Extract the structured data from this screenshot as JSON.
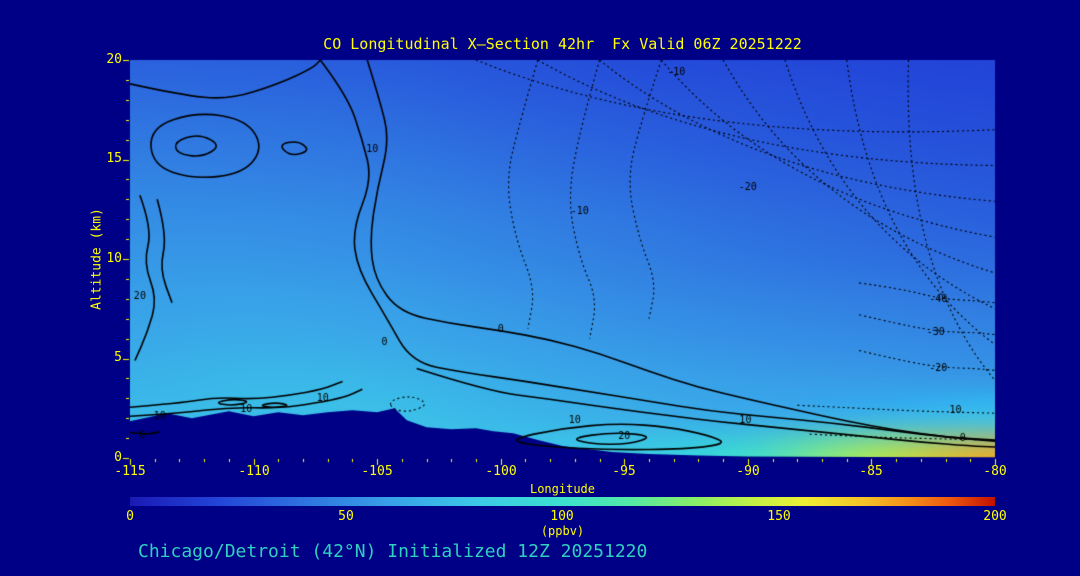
{
  "colors": {
    "background": "#000086",
    "axis": "#ffff00",
    "title": "#ffff00",
    "annotation": "#2fd0c0",
    "contour": "#000000"
  },
  "chart_data": {
    "type": "heatmap",
    "subtype": "filled-contour-longitudinal-cross-section",
    "title": "CO Longitudinal X—Section 42hr  Fx Valid 06Z 20251222",
    "xlabel": "Longitude",
    "ylabel": "Altitude (km)",
    "xlim": [
      -115,
      -80
    ],
    "ylim": [
      0,
      20
    ],
    "x_ticks": [
      -115,
      -110,
      -105,
      -100,
      -95,
      -90,
      -85,
      -80
    ],
    "y_ticks": [
      0,
      5,
      10,
      15,
      20
    ],
    "grid": false,
    "annotation": "Chicago/Detroit (42°N) Initialized 12Z 20251220",
    "meta": {
      "species": "CO",
      "forecast_hour": "42hr",
      "valid": "06Z 20251222",
      "initialized": "12Z 20251220",
      "location": "Chicago/Detroit (42°N)"
    },
    "colorbar": {
      "label": "(ppbv)",
      "min": 0,
      "max": 200,
      "ticks": [
        0,
        50,
        100,
        150,
        200
      ],
      "stops": [
        {
          "pos": 0.0,
          "color": "#1a1ab4"
        },
        {
          "pos": 0.1,
          "color": "#2244d8"
        },
        {
          "pos": 0.2,
          "color": "#2e72e0"
        },
        {
          "pos": 0.3,
          "color": "#38a0e8"
        },
        {
          "pos": 0.4,
          "color": "#3cc8e8"
        },
        {
          "pos": 0.5,
          "color": "#3ce0d0"
        },
        {
          "pos": 0.575,
          "color": "#52e8a8"
        },
        {
          "pos": 0.65,
          "color": "#86ee6a"
        },
        {
          "pos": 0.72,
          "color": "#c2f046"
        },
        {
          "pos": 0.78,
          "color": "#eeee34"
        },
        {
          "pos": 0.85,
          "color": "#f4c028"
        },
        {
          "pos": 0.9,
          "color": "#f49018"
        },
        {
          "pos": 0.95,
          "color": "#ee5510"
        },
        {
          "pos": 1.0,
          "color": "#c01000"
        }
      ]
    },
    "field": {
      "units": "ppbv",
      "lons": [
        -115,
        -110,
        -105,
        -100,
        -95,
        -90,
        -85,
        -80
      ],
      "alts": [
        20,
        18,
        16,
        14,
        12,
        10,
        8,
        6,
        4,
        2,
        0
      ],
      "values": [
        [
          33,
          32,
          30,
          27,
          24,
          22,
          21,
          20
        ],
        [
          38,
          37,
          35,
          31,
          28,
          26,
          24,
          22
        ],
        [
          43,
          42,
          40,
          36,
          32,
          29,
          27,
          25
        ],
        [
          48,
          47,
          45,
          41,
          37,
          33,
          31,
          28
        ],
        [
          52,
          52,
          50,
          46,
          42,
          38,
          35,
          32
        ],
        [
          56,
          56,
          54,
          50,
          46,
          42,
          39,
          37
        ],
        [
          60,
          61,
          59,
          55,
          51,
          48,
          45,
          43
        ],
        [
          64,
          66,
          64,
          60,
          56,
          53,
          51,
          49
        ],
        [
          69,
          72,
          71,
          66,
          62,
          59,
          58,
          56
        ],
        [
          73,
          75,
          77,
          72,
          68,
          66,
          70,
          78
        ],
        [
          73,
          75,
          79,
          79,
          84,
          100,
          140,
          175
        ]
      ]
    },
    "terrain": {
      "lons": [
        -115,
        -113.5,
        -112.5,
        -111,
        -110,
        -109,
        -108,
        -107,
        -106,
        -105,
        -104.3,
        -103.8,
        -103,
        -102,
        -101,
        -100.3,
        -99.5,
        -98.5,
        -97.5,
        -96.5,
        -95.5,
        -94,
        -92,
        -90,
        -85,
        -80
      ],
      "alts": [
        1.85,
        2.25,
        2.0,
        2.35,
        2.1,
        2.3,
        2.15,
        2.3,
        2.4,
        2.3,
        2.5,
        1.9,
        1.55,
        1.45,
        1.5,
        1.35,
        1.25,
        0.9,
        0.6,
        0.45,
        0.3,
        0.2,
        0.12,
        0.08,
        0.05,
        0.04
      ]
    },
    "contours": {
      "solid_levels": [
        0,
        10,
        20
      ],
      "dotted_levels": [
        -40,
        -30,
        -20,
        -10,
        0,
        10
      ],
      "labels": [
        {
          "v": "-10",
          "lon": -92.9,
          "alt": 19.4
        },
        {
          "v": "-20",
          "lon": -90.0,
          "alt": 13.6
        },
        {
          "v": "-10",
          "lon": -96.8,
          "alt": 12.4
        },
        {
          "v": "10",
          "lon": -105.2,
          "alt": 15.5
        },
        {
          "v": "20",
          "lon": -114.6,
          "alt": 8.1
        },
        {
          "v": "0",
          "lon": -104.7,
          "alt": 5.8
        },
        {
          "v": "0",
          "lon": -100.0,
          "alt": 6.45
        },
        {
          "v": "-40",
          "lon": -82.3,
          "alt": 7.95
        },
        {
          "v": "-30",
          "lon": -82.4,
          "alt": 6.3
        },
        {
          "v": "-20",
          "lon": -82.3,
          "alt": 4.5
        },
        {
          "v": "10",
          "lon": -81.6,
          "alt": 2.4
        },
        {
          "v": "0",
          "lon": -81.3,
          "alt": 1.0
        },
        {
          "v": "10",
          "lon": -113.8,
          "alt": 2.1
        },
        {
          "v": "10",
          "lon": -110.3,
          "alt": 2.45
        },
        {
          "v": "10",
          "lon": -107.2,
          "alt": 3.0
        },
        {
          "v": "0",
          "lon": -114.5,
          "alt": 1.15
        },
        {
          "v": "20",
          "lon": -95.0,
          "alt": 1.1
        },
        {
          "v": "10",
          "lon": -97.0,
          "alt": 1.9
        },
        {
          "v": "10",
          "lon": -90.1,
          "alt": 1.9
        }
      ]
    }
  }
}
